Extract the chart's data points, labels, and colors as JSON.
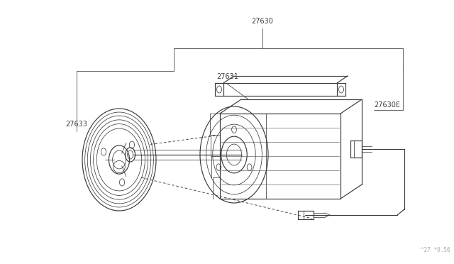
{
  "bg_color": "#ffffff",
  "line_color": "#3a3a3a",
  "label_color": "#3a3a3a",
  "watermark": "^27 *0.56",
  "lw_main": 0.85,
  "lw_thin": 0.55,
  "font_size": 7.0
}
